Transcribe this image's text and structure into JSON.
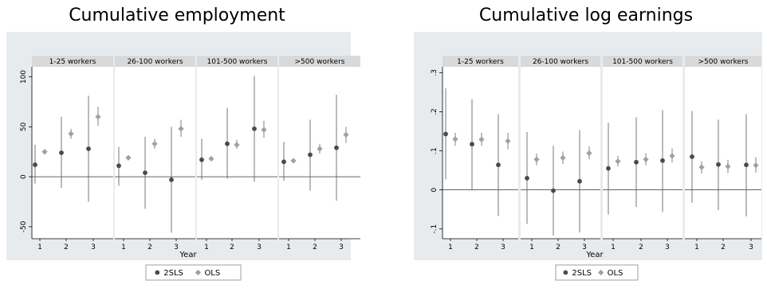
{
  "colors": {
    "background": "#e8ebee",
    "plot_area": "#ffffff",
    "strip": "#d9d9d9",
    "series_2sls": "#4a4a4a",
    "series_ols": "#a0a0a0",
    "ci_line": "#555555",
    "ols_ci_line": "#b0b0b0"
  },
  "chart_data": [
    {
      "type": "scatter",
      "title": "Cumulative employment",
      "xlabel": "Year",
      "ylabel": "",
      "ylim": [
        -62,
        110
      ],
      "yticks": [
        -50,
        0,
        50,
        100
      ],
      "ytick_labels": [
        "-50",
        "0",
        "50",
        "100"
      ],
      "xticks": [
        1,
        2,
        3
      ],
      "xtick_labels": [
        "1",
        "2",
        "3"
      ],
      "legend": [
        "2SLS",
        "OLS"
      ],
      "legend_position": "bottom",
      "grid": false,
      "panels": [
        {
          "label": "1-25 workers",
          "series": [
            {
              "name": "2SLS",
              "x": [
                1,
                2,
                3
              ],
              "y": [
                12,
                24,
                28
              ],
              "ci_low": [
                -7,
                -11,
                -25
              ],
              "ci_high": [
                32,
                60,
                81
              ]
            },
            {
              "name": "OLS",
              "x": [
                1,
                2,
                3
              ],
              "y": [
                25,
                43,
                60
              ],
              "ci_low": [
                24,
                38,
                51
              ],
              "ci_high": [
                27,
                48,
                70
              ]
            }
          ]
        },
        {
          "label": "26-100 workers",
          "series": [
            {
              "name": "2SLS",
              "x": [
                1,
                2,
                3
              ],
              "y": [
                11,
                4,
                -3
              ],
              "ci_low": [
                -9,
                -32,
                -56
              ],
              "ci_high": [
                30,
                40,
                50
              ]
            },
            {
              "name": "OLS",
              "x": [
                1,
                2,
                3
              ],
              "y": [
                19,
                33,
                48
              ],
              "ci_low": [
                18,
                28,
                40
              ],
              "ci_high": [
                21,
                38,
                57
              ]
            }
          ]
        },
        {
          "label": "101-500 workers",
          "series": [
            {
              "name": "2SLS",
              "x": [
                1,
                2,
                3
              ],
              "y": [
                17,
                33,
                48
              ],
              "ci_low": [
                -3,
                -2,
                -5
              ],
              "ci_high": [
                38,
                69,
                101
              ]
            },
            {
              "name": "OLS",
              "x": [
                1,
                2,
                3
              ],
              "y": [
                18,
                32,
                47
              ],
              "ci_low": [
                17,
                28,
                39
              ],
              "ci_high": [
                19,
                37,
                56
              ]
            }
          ]
        },
        {
          "label": ">500 workers",
          "series": [
            {
              "name": "2SLS",
              "x": [
                1,
                2,
                3
              ],
              "y": [
                15,
                22,
                29
              ],
              "ci_low": [
                -4,
                -14,
                -24
              ],
              "ci_high": [
                35,
                57,
                82
              ]
            },
            {
              "name": "OLS",
              "x": [
                1,
                2,
                3
              ],
              "y": [
                16,
                28,
                42
              ],
              "ci_low": [
                15,
                23,
                34
              ],
              "ci_high": [
                17,
                33,
                50
              ]
            }
          ]
        }
      ]
    },
    {
      "type": "scatter",
      "title": "Cumulative log earnings",
      "xlabel": "Year",
      "ylabel": "",
      "ylim": [
        -0.125,
        0.315
      ],
      "yticks": [
        -0.1,
        0,
        0.1,
        0.2,
        0.3
      ],
      "ytick_labels": [
        "-.1",
        "0",
        ".1",
        ".2",
        ".3"
      ],
      "xticks": [
        1,
        2,
        3
      ],
      "xtick_labels": [
        "1",
        "2",
        "3"
      ],
      "legend": [
        "2SLS",
        "OLS"
      ],
      "legend_position": "bottom",
      "grid": false,
      "panels": [
        {
          "label": "1-25 workers",
          "series": [
            {
              "name": "2SLS",
              "x": [
                1,
                2,
                3
              ],
              "y": [
                0.143,
                0.117,
                0.064
              ],
              "ci_low": [
                0.027,
                0.001,
                -0.067
              ],
              "ci_high": [
                0.26,
                0.232,
                0.194
              ]
            },
            {
              "name": "OLS",
              "x": [
                1,
                2,
                3
              ],
              "y": [
                0.13,
                0.129,
                0.125
              ],
              "ci_low": [
                0.113,
                0.113,
                0.104
              ],
              "ci_high": [
                0.146,
                0.146,
                0.146
              ]
            }
          ]
        },
        {
          "label": "26-100 workers",
          "series": [
            {
              "name": "2SLS",
              "x": [
                1,
                2,
                3
              ],
              "y": [
                0.03,
                -0.002,
                0.022
              ],
              "ci_low": [
                -0.087,
                -0.117,
                -0.109
              ],
              "ci_high": [
                0.148,
                0.113,
                0.153
              ]
            },
            {
              "name": "OLS",
              "x": [
                1,
                2,
                3
              ],
              "y": [
                0.078,
                0.082,
                0.094
              ],
              "ci_low": [
                0.063,
                0.066,
                0.078
              ],
              "ci_high": [
                0.093,
                0.098,
                0.112
              ]
            }
          ]
        },
        {
          "label": "101-500 workers",
          "series": [
            {
              "name": "2SLS",
              "x": [
                1,
                2,
                3
              ],
              "y": [
                0.055,
                0.071,
                0.075
              ],
              "ci_low": [
                -0.063,
                -0.044,
                -0.057
              ],
              "ci_high": [
                0.172,
                0.186,
                0.204
              ]
            },
            {
              "name": "OLS",
              "x": [
                1,
                2,
                3
              ],
              "y": [
                0.073,
                0.078,
                0.087
              ],
              "ci_low": [
                0.06,
                0.063,
                0.07
              ],
              "ci_high": [
                0.087,
                0.094,
                0.106
              ]
            }
          ]
        },
        {
          "label": ">500 workers",
          "series": [
            {
              "name": "2SLS",
              "x": [
                1,
                2,
                3
              ],
              "y": [
                0.085,
                0.065,
                0.064
              ],
              "ci_low": [
                -0.033,
                -0.052,
                -0.068
              ],
              "ci_high": [
                0.202,
                0.18,
                0.194
              ]
            },
            {
              "name": "OLS",
              "x": [
                1,
                2,
                3
              ],
              "y": [
                0.058,
                0.06,
                0.063
              ],
              "ci_low": [
                0.042,
                0.043,
                0.044
              ],
              "ci_high": [
                0.073,
                0.077,
                0.084
              ]
            }
          ]
        }
      ]
    }
  ]
}
